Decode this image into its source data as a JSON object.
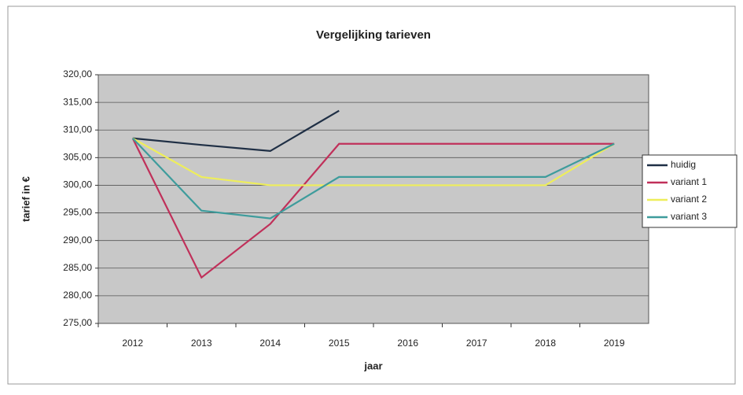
{
  "chart_data": {
    "type": "line",
    "title": "Vergelijking tarieven",
    "xlabel": "jaar",
    "ylabel": "tarief in €",
    "categories": [
      "2012",
      "2013",
      "2014",
      "2015",
      "2016",
      "2017",
      "2018",
      "2019"
    ],
    "series": [
      {
        "name": "huidig",
        "color": "#1f2f45",
        "values": [
          308.5,
          307.3,
          306.2,
          313.5,
          null,
          null,
          null,
          null
        ]
      },
      {
        "name": "variant 1",
        "color": "#c0305a",
        "values": [
          308.5,
          283.3,
          293,
          307.5,
          307.5,
          307.5,
          307.5,
          307.5
        ]
      },
      {
        "name": "variant 2",
        "color": "#eeee5a",
        "values": [
          308.5,
          301.5,
          300,
          300,
          300,
          300,
          300,
          307.5
        ]
      },
      {
        "name": "variant 3",
        "color": "#3e9c9c",
        "values": [
          308.5,
          295.4,
          294,
          301.5,
          301.5,
          301.5,
          301.5,
          307.5
        ]
      }
    ],
    "ylim": [
      275,
      320
    ],
    "yticks": [
      {
        "value": 275,
        "label": "275,00"
      },
      {
        "value": 280,
        "label": "280,00"
      },
      {
        "value": 285,
        "label": "285,00"
      },
      {
        "value": 290,
        "label": "290,00"
      },
      {
        "value": 295,
        "label": "295,00"
      },
      {
        "value": 300,
        "label": "300,00"
      },
      {
        "value": 305,
        "label": "305,00"
      },
      {
        "value": 310,
        "label": "310,00"
      },
      {
        "value": 315,
        "label": "315,00"
      },
      {
        "value": 320,
        "label": "320,00"
      }
    ],
    "grid": true,
    "legend": "right"
  }
}
